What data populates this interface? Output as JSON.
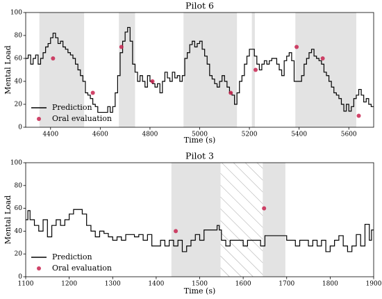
{
  "chart_data": [
    {
      "type": "line",
      "title": "Pilot 6",
      "xlabel": "Time (s)",
      "ylabel": "Mental Load",
      "xlim": [
        4300,
        5700
      ],
      "xticks": [
        4400,
        4600,
        4800,
        5000,
        5200,
        5400,
        5600
      ],
      "ylim": [
        0,
        100
      ],
      "yticks": [
        0,
        20,
        40,
        60,
        80,
        100
      ],
      "spans": [
        [
          4355,
          4535
        ],
        [
          4675,
          4740
        ],
        [
          4935,
          5150
        ],
        [
          5210,
          5222
        ],
        [
          5385,
          5630
        ]
      ],
      "span_color": "#e3e3e3",
      "legend": "lower left",
      "series": [
        {
          "name": "Prediction",
          "type": "step",
          "color": "#000000",
          "x": [
            4300,
            4310,
            4320,
            4330,
            4340,
            4350,
            4360,
            4370,
            4380,
            4390,
            4400,
            4410,
            4420,
            4430,
            4440,
            4450,
            4460,
            4470,
            4480,
            4490,
            4500,
            4510,
            4520,
            4530,
            4540,
            4550,
            4560,
            4570,
            4580,
            4590,
            4620,
            4630,
            4640,
            4650,
            4660,
            4670,
            4680,
            4690,
            4700,
            4710,
            4720,
            4730,
            4740,
            4750,
            4760,
            4770,
            4780,
            4790,
            4800,
            4810,
            4820,
            4830,
            4840,
            4850,
            4860,
            4870,
            4880,
            4890,
            4900,
            4910,
            4920,
            4930,
            4940,
            4950,
            4960,
            4970,
            4980,
            4990,
            5000,
            5010,
            5020,
            5030,
            5040,
            5050,
            5060,
            5070,
            5080,
            5090,
            5100,
            5110,
            5120,
            5130,
            5140,
            5150,
            5160,
            5170,
            5180,
            5190,
            5200,
            5220,
            5230,
            5240,
            5250,
            5260,
            5270,
            5280,
            5290,
            5310,
            5320,
            5330,
            5340,
            5350,
            5360,
            5370,
            5380,
            5410,
            5420,
            5430,
            5440,
            5450,
            5460,
            5470,
            5480,
            5490,
            5500,
            5510,
            5520,
            5530,
            5540,
            5550,
            5560,
            5570,
            5580,
            5590,
            5600,
            5610,
            5620,
            5630,
            5640,
            5650,
            5660,
            5670,
            5680,
            5690,
            5700
          ],
          "values": [
            60,
            63,
            55,
            60,
            63,
            55,
            60,
            65,
            70,
            73,
            78,
            82,
            78,
            73,
            75,
            70,
            68,
            65,
            63,
            60,
            55,
            50,
            45,
            40,
            30,
            28,
            25,
            20,
            18,
            13,
            13,
            18,
            13,
            18,
            30,
            45,
            65,
            75,
            83,
            87,
            75,
            55,
            48,
            40,
            45,
            40,
            35,
            45,
            40,
            38,
            35,
            38,
            30,
            40,
            48,
            43,
            40,
            48,
            43,
            45,
            40,
            45,
            60,
            65,
            72,
            75,
            70,
            73,
            75,
            68,
            62,
            55,
            45,
            42,
            38,
            35,
            40,
            45,
            40,
            35,
            30,
            28,
            20,
            30,
            40,
            45,
            55,
            62,
            68,
            62,
            55,
            50,
            55,
            58,
            55,
            58,
            60,
            55,
            50,
            45,
            58,
            62,
            65,
            58,
            40,
            45,
            55,
            60,
            65,
            68,
            62,
            60,
            58,
            55,
            48,
            45,
            40,
            35,
            30,
            28,
            25,
            20,
            14,
            20,
            14,
            18,
            25,
            28,
            33,
            28,
            22,
            25,
            20,
            18,
            18
          ]
        },
        {
          "name": "Oral evaluation",
          "type": "scatter",
          "color": "#c8234f",
          "x": [
            4410,
            4570,
            4685,
            4810,
            5125,
            5225,
            5390,
            5495,
            5640
          ],
          "values": [
            60,
            30,
            70,
            40,
            30,
            50,
            70,
            60,
            10
          ]
        }
      ]
    },
    {
      "type": "line",
      "title": "Pilot 3",
      "xlabel": "Time (s)",
      "ylabel": "Mental Load",
      "xlim": [
        1100,
        1900
      ],
      "xticks": [
        1100,
        1200,
        1300,
        1400,
        1500,
        1600,
        1700,
        1800,
        1900
      ],
      "ylim": [
        0,
        100
      ],
      "yticks": [
        0,
        20,
        40,
        60,
        80,
        100
      ],
      "spans": [
        [
          1435,
          1548
        ],
        [
          1645,
          1697
        ]
      ],
      "hatched_spans": [
        [
          1548,
          1645
        ]
      ],
      "span_color": "#e3e3e3",
      "legend": "lower left",
      "series": [
        {
          "name": "Prediction",
          "type": "step",
          "color": "#000000",
          "x": [
            1100,
            1105,
            1110,
            1120,
            1130,
            1140,
            1150,
            1160,
            1170,
            1180,
            1190,
            1200,
            1210,
            1230,
            1240,
            1250,
            1260,
            1270,
            1280,
            1290,
            1300,
            1310,
            1320,
            1330,
            1350,
            1360,
            1370,
            1380,
            1390,
            1410,
            1420,
            1430,
            1440,
            1450,
            1460,
            1470,
            1480,
            1490,
            1500,
            1510,
            1540,
            1545,
            1550,
            1560,
            1570,
            1600,
            1610,
            1640,
            1650,
            1700,
            1720,
            1730,
            1750,
            1760,
            1770,
            1780,
            1790,
            1800,
            1810,
            1820,
            1830,
            1840,
            1850,
            1860,
            1870,
            1880,
            1890,
            1895,
            1900
          ],
          "values": [
            50,
            58,
            50,
            45,
            40,
            50,
            35,
            45,
            50,
            45,
            50,
            55,
            59,
            55,
            45,
            40,
            35,
            40,
            38,
            35,
            32,
            35,
            32,
            37,
            35,
            37,
            32,
            37,
            27,
            32,
            27,
            32,
            27,
            32,
            22,
            27,
            32,
            37,
            32,
            41,
            45,
            41,
            32,
            27,
            32,
            27,
            32,
            27,
            36,
            32,
            27,
            32,
            27,
            32,
            27,
            32,
            22,
            27,
            32,
            36,
            27,
            22,
            27,
            37,
            27,
            46,
            32,
            41,
            41
          ]
        },
        {
          "name": "Oral evaluation",
          "type": "scatter",
          "color": "#c8234f",
          "x": [
            1445,
            1648
          ],
          "values": [
            40,
            60
          ]
        }
      ]
    }
  ]
}
